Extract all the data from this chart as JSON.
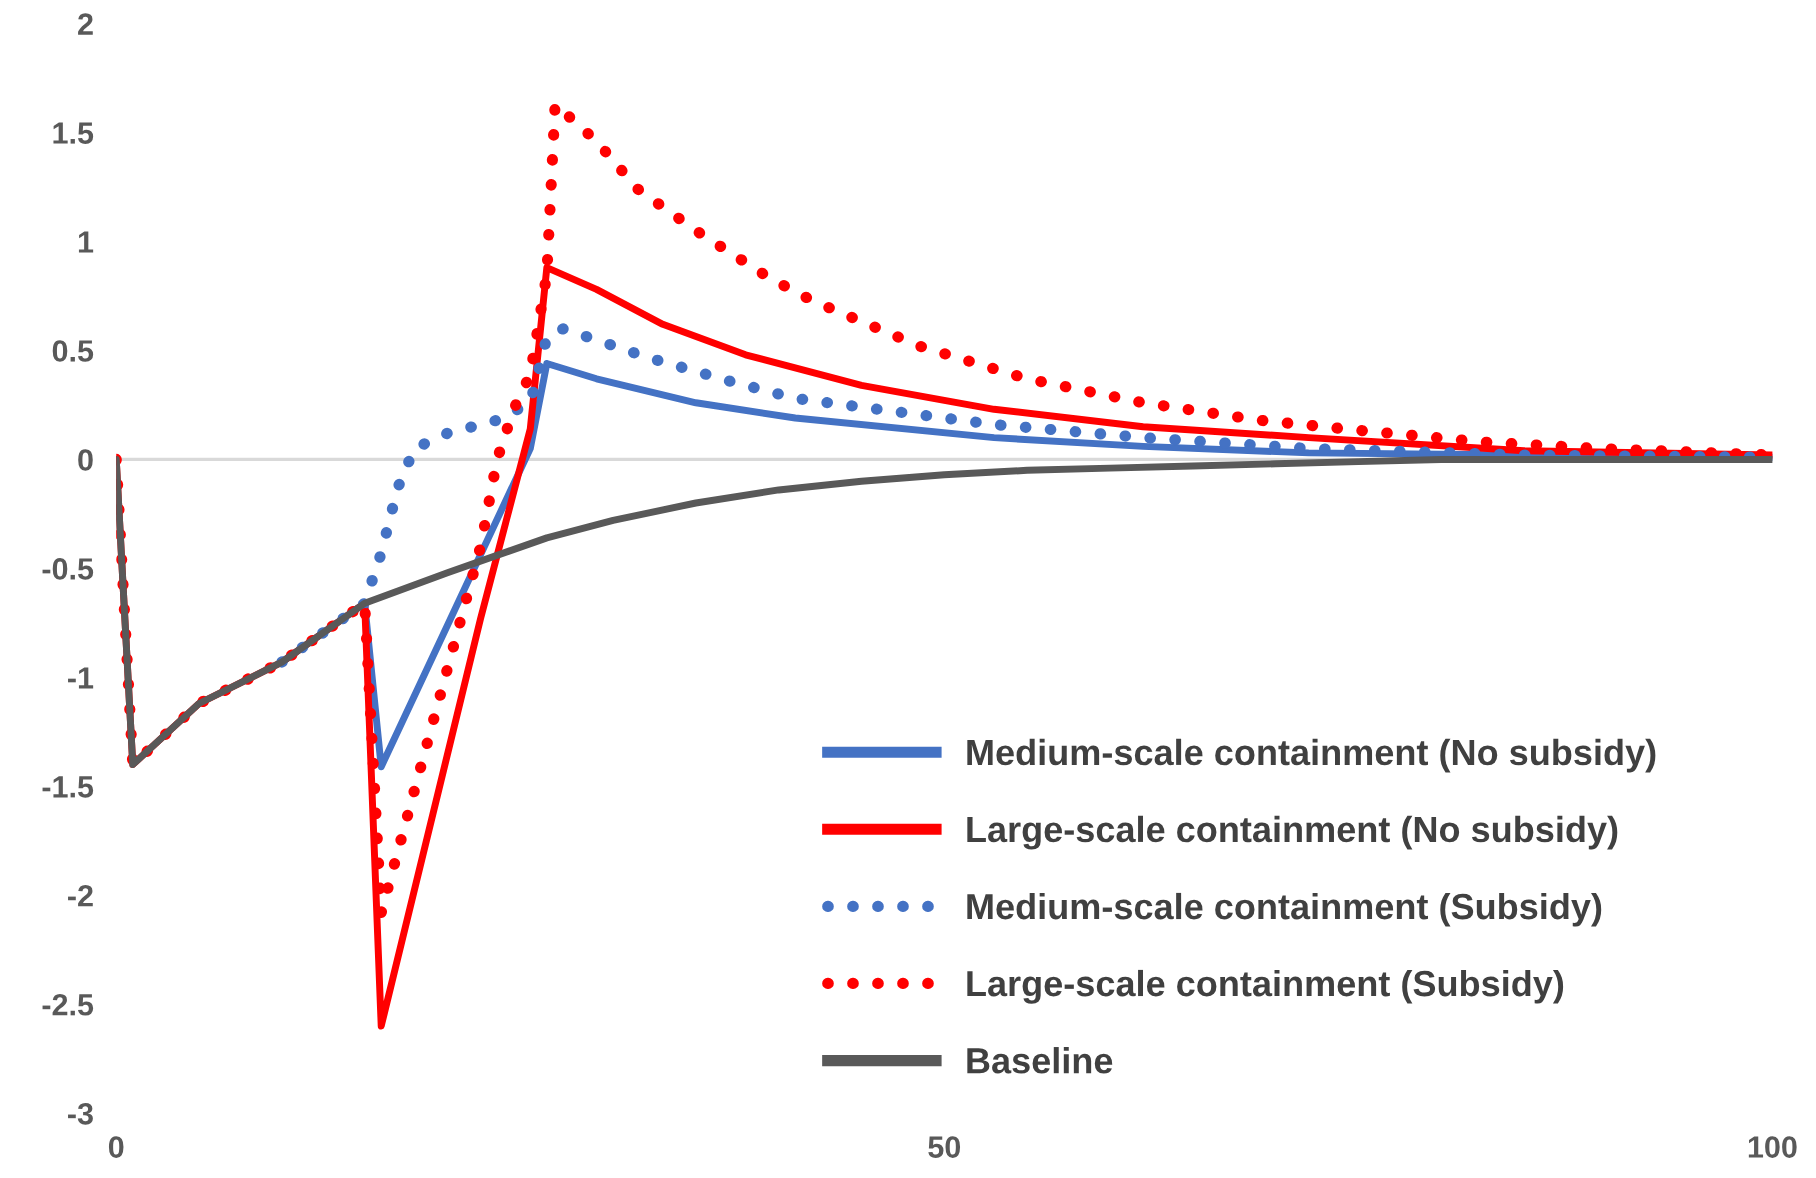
{
  "chart_data": {
    "type": "line",
    "xlim": [
      0,
      100
    ],
    "xticks": [
      0,
      50,
      100
    ],
    "ylim": [
      -3,
      2
    ],
    "yticks": [
      -3,
      -2.5,
      -2,
      -1.5,
      -1,
      -0.5,
      0,
      0.5,
      1,
      1.5,
      2
    ],
    "grid": false,
    "legend": "bottom right",
    "ref_lines": [
      {
        "axis": "y",
        "value": 0,
        "color": "#d9d9d9"
      }
    ],
    "series": [
      {
        "name": "Medium-scale containment (No subsidy)",
        "color": "#4472c4",
        "line_style": "solid",
        "x": [
          10,
          15,
          16,
          25,
          26,
          29,
          35,
          41,
          53,
          62,
          72,
          85,
          100
        ],
        "values": [
          -0.93,
          -0.66,
          -1.41,
          0.05,
          0.44,
          0.37,
          0.26,
          0.19,
          0.1,
          0.06,
          0.03,
          0.02,
          0.01
        ]
      },
      {
        "name": "Large-scale containment (No subsidy)",
        "color": "#ff0000",
        "line_style": "solid",
        "x": [
          0,
          1,
          5,
          10,
          15,
          16,
          22,
          25,
          26,
          29,
          33,
          38,
          45,
          53,
          62,
          72,
          85,
          100
        ],
        "values": [
          0,
          -1.4,
          -1.12,
          -0.93,
          -0.66,
          -2.6,
          -0.73,
          0.14,
          0.88,
          0.78,
          0.62,
          0.48,
          0.34,
          0.23,
          0.15,
          0.1,
          0.04,
          0.02
        ]
      },
      {
        "name": "Medium-scale containment (Subsidy)",
        "color": "#4472c4",
        "line_style": "dotted",
        "x": [
          10,
          15,
          16,
          17,
          18,
          20,
          23,
          25,
          26,
          27,
          32,
          37,
          41,
          53,
          62,
          72,
          85,
          100
        ],
        "values": [
          -0.93,
          -0.66,
          -0.43,
          -0.13,
          0.05,
          0.12,
          0.18,
          0.26,
          0.56,
          0.6,
          0.47,
          0.36,
          0.28,
          0.16,
          0.1,
          0.05,
          0.02,
          0.01
        ]
      },
      {
        "name": "Large-scale containment (Subsidy)",
        "color": "#ff0000",
        "line_style": "dotted",
        "x": [
          0,
          1,
          5,
          10,
          15,
          16,
          22,
          23,
          24,
          25,
          26,
          26.5,
          29,
          31.5,
          35,
          39.5,
          42,
          48.5,
          55,
          62,
          69,
          75.5,
          82.5,
          89.5,
          100
        ],
        "values": [
          0,
          -1.4,
          -1.12,
          -0.93,
          -0.66,
          -2.08,
          -0.4,
          0.0,
          0.23,
          0.39,
          0.85,
          1.63,
          1.46,
          1.24,
          1.05,
          0.83,
          0.73,
          0.52,
          0.37,
          0.26,
          0.18,
          0.13,
          0.08,
          0.05,
          0.02
        ]
      },
      {
        "name": "Baseline",
        "color": "#595959",
        "line_style": "solid",
        "x": [
          0,
          1,
          5,
          10,
          15,
          20,
          26,
          30,
          35,
          40,
          45,
          50,
          55,
          60,
          65,
          70,
          75,
          80,
          90,
          100
        ],
        "values": [
          0,
          -1.4,
          -1.12,
          -0.93,
          -0.66,
          -0.52,
          -0.36,
          -0.28,
          -0.2,
          -0.14,
          -0.1,
          -0.07,
          -0.05,
          -0.04,
          -0.03,
          -0.02,
          -0.01,
          0,
          0,
          0
        ]
      }
    ]
  }
}
